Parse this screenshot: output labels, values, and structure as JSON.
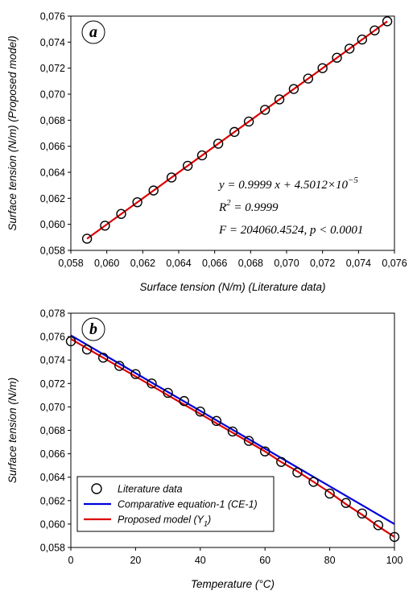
{
  "chart_data": [
    {
      "type": "scatter",
      "panel_label": "a",
      "xlabel": "Surface tension (N/m) (Literature data)",
      "ylabel": "Surface tension (N/m) (Proposed model)",
      "xlim": [
        0.058,
        0.076
      ],
      "ylim": [
        0.058,
        0.076
      ],
      "xticks": [
        "0,058",
        "0,060",
        "0,062",
        "0,064",
        "0,066",
        "0,068",
        "0,070",
        "0,072",
        "0,074",
        "0,076"
      ],
      "yticks": [
        "0,058",
        "0,060",
        "0,062",
        "0,064",
        "0,066",
        "0,068",
        "0,070",
        "0,072",
        "0,074",
        "0,076"
      ],
      "grid": false,
      "series": [
        {
          "style": "open-circle",
          "color": "#000000",
          "x": [
            0.0589,
            0.0599,
            0.0608,
            0.0617,
            0.0626,
            0.0636,
            0.0645,
            0.0653,
            0.0662,
            0.0671,
            0.0679,
            0.0688,
            0.0696,
            0.0704,
            0.0712,
            0.072,
            0.0728,
            0.0735,
            0.0742,
            0.0749,
            0.0756
          ],
          "y": [
            0.0589,
            0.0599,
            0.0608,
            0.0617,
            0.0626,
            0.0636,
            0.0645,
            0.0653,
            0.0662,
            0.0671,
            0.0679,
            0.0688,
            0.0696,
            0.0704,
            0.0712,
            0.072,
            0.0728,
            0.0735,
            0.0742,
            0.0749,
            0.0756
          ]
        },
        {
          "style": "line",
          "color": "#dd0000",
          "x": [
            0.0589,
            0.0756
          ],
          "y": [
            0.0589,
            0.0756
          ]
        }
      ],
      "annotations": {
        "eq1_lhs": "y = 0.9999",
        "eq1_var": "x",
        "eq1_rhs": " + 4.5012×10",
        "eq1_exp": "−5",
        "eq2_base": "R",
        "eq2_exp": "2",
        "eq2_rest": " = 0.9999",
        "eq3": "F = 204060.4524,  p < 0.0001"
      }
    },
    {
      "type": "line",
      "panel_label": "b",
      "xlabel": "Temperature (°C)",
      "ylabel": "Surface tension (N/m)",
      "xlim": [
        0,
        100
      ],
      "ylim": [
        0.058,
        0.078
      ],
      "xticks": [
        "0",
        "20",
        "40",
        "60",
        "80",
        "100"
      ],
      "yticks": [
        "0,058",
        "0,060",
        "0,062",
        "0,064",
        "0,066",
        "0,068",
        "0,070",
        "0,072",
        "0,074",
        "0,076",
        "0,078"
      ],
      "grid": false,
      "legend_position": "bottom-left",
      "series": [
        {
          "name": "Literature data",
          "style": "open-circle",
          "color": "#000000",
          "x": [
            0,
            5,
            10,
            15,
            20,
            25,
            30,
            35,
            40,
            45,
            50,
            55,
            60,
            65,
            70,
            75,
            80,
            85,
            90,
            95,
            100
          ],
          "y": [
            0.0756,
            0.0749,
            0.0742,
            0.0735,
            0.0728,
            0.072,
            0.0712,
            0.0705,
            0.0696,
            0.0688,
            0.0679,
            0.0671,
            0.0662,
            0.0653,
            0.0644,
            0.0636,
            0.0626,
            0.0618,
            0.0609,
            0.0599,
            0.0589
          ]
        },
        {
          "name": "Comparative equation-1 (CE-1)",
          "name_suffix": "",
          "style": "line",
          "color": "#0000dd",
          "x": [
            0,
            100
          ],
          "y": [
            0.0761,
            0.06
          ]
        },
        {
          "name": "Proposed model (Y",
          "name_sub": "1",
          "name_suffix": ")",
          "style": "line",
          "color": "#dd0000",
          "x": [
            0,
            5,
            10,
            15,
            20,
            25,
            30,
            35,
            40,
            45,
            50,
            55,
            60,
            65,
            70,
            75,
            80,
            85,
            90,
            95,
            100
          ],
          "y": [
            0.0758,
            0.075,
            0.0742,
            0.0734,
            0.0726,
            0.0718,
            0.071,
            0.0702,
            0.0694,
            0.0686,
            0.0678,
            0.067,
            0.0662,
            0.0653,
            0.0645,
            0.0636,
            0.0627,
            0.0617,
            0.0608,
            0.0598,
            0.0589
          ]
        }
      ]
    }
  ]
}
